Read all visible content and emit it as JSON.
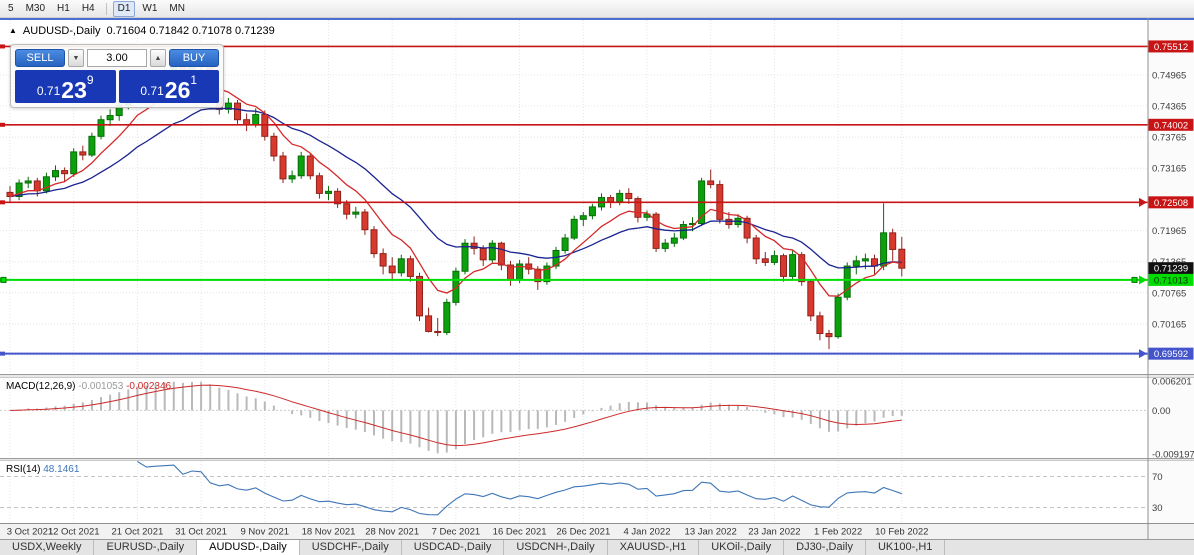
{
  "toolbar": {
    "timeframes": [
      "5",
      "M30",
      "H1",
      "H4",
      "D1",
      "W1",
      "MN"
    ],
    "active": "D1"
  },
  "header": {
    "arrow_icon": "▲",
    "title": "AUDUSD-,Daily",
    "ohlc": "0.71604 0.71842 0.71078 0.71239"
  },
  "trade_panel": {
    "sell_label": "SELL",
    "buy_label": "BUY",
    "volume": "3.00",
    "down_arrow_icon": "▼",
    "up_arrow_icon": "▲",
    "bid": {
      "prefix": "0.71",
      "big": "23",
      "sup": "9"
    },
    "ask": {
      "prefix": "0.71",
      "big": "26",
      "sup": "1"
    }
  },
  "tabs": {
    "items": [
      "USDX,Weekly",
      "EURUSD-,Daily",
      "AUDUSD-,Daily",
      "USDCHF-,Daily",
      "USDCAD-,Daily",
      "USDCNH-,Daily",
      "XAUUSD-,H1",
      "UKOil-,Daily",
      "DJ30-,Daily",
      "UK100-,H1"
    ],
    "active": "AUDUSD-,Daily"
  },
  "chart_data": {
    "type": "candlestick",
    "symbol": "AUDUSD-",
    "period": "Daily",
    "current_bar": {
      "open": "0.71604",
      "high": "0.71842",
      "low": "0.71078",
      "close": "0.71239"
    },
    "price_range": [
      0.692,
      0.7606
    ],
    "y_ticks": [
      "0.74965",
      "0.74365",
      "0.73765",
      "0.73165",
      "0.71965",
      "0.71365",
      "0.70765",
      "0.70165",
      "0.69565"
    ],
    "badges": [
      {
        "text": "0.75512",
        "bg": "#c81414",
        "fg": "#ffffff"
      },
      {
        "text": "0.74002",
        "bg": "#c81414",
        "fg": "#ffffff"
      },
      {
        "text": "0.72508",
        "bg": "#c81414",
        "fg": "#ffffff"
      },
      {
        "text": "0.71239",
        "bg": "#111111",
        "fg": "#ffffff"
      },
      {
        "text": "0.71013",
        "bg": "#00dd00",
        "fg": "#003300"
      },
      {
        "text": "0.69592",
        "bg": "#4455cc",
        "fg": "#ffffff"
      }
    ],
    "hlines": [
      {
        "price": 0.75512,
        "color": "#c81414",
        "w": 1.6
      },
      {
        "price": 0.74002,
        "color": "#c81414",
        "w": 1.6
      },
      {
        "price": 0.72508,
        "color": "#c81414",
        "w": 1.6,
        "arrow": true
      },
      {
        "price": 0.71013,
        "color": "#00dd00",
        "w": 2,
        "arrow": true,
        "handles": true
      },
      {
        "price": 0.69592,
        "color": "#4455cc",
        "w": 2,
        "arrow": true
      }
    ],
    "x_labels": [
      "3 Oct 2021",
      "12 Oct 2021",
      "21 Oct 2021",
      "31 Oct 2021",
      "9 Nov 2021",
      "18 Nov 2021",
      "28 Nov 2021",
      "7 Dec 2021",
      "16 Dec 2021",
      "26 Dec 2021",
      "4 Jan 2022",
      "13 Jan 2022",
      "23 Jan 2022",
      "1 Feb 2022",
      "10 Feb 2022"
    ],
    "label_every": 7,
    "ma_fast_period": 8,
    "ma_slow_period": 20,
    "ma_fast_color": "#d42a2a",
    "ma_slow_color": "#1c2490",
    "up_color": "#0da00d",
    "down_color": "#d8392e",
    "candles": [
      [
        0.727,
        0.7282,
        0.7252,
        0.7262
      ],
      [
        0.7262,
        0.7295,
        0.7255,
        0.7288
      ],
      [
        0.7288,
        0.73,
        0.7278,
        0.7292
      ],
      [
        0.7292,
        0.7298,
        0.7262,
        0.7273
      ],
      [
        0.7273,
        0.7308,
        0.7268,
        0.73
      ],
      [
        0.73,
        0.7322,
        0.7292,
        0.7312
      ],
      [
        0.7312,
        0.7318,
        0.729,
        0.7306
      ],
      [
        0.7306,
        0.7355,
        0.73,
        0.7348
      ],
      [
        0.7348,
        0.736,
        0.7332,
        0.7342
      ],
      [
        0.7342,
        0.7385,
        0.7338,
        0.7378
      ],
      [
        0.7378,
        0.7418,
        0.7372,
        0.741
      ],
      [
        0.741,
        0.743,
        0.7398,
        0.7418
      ],
      [
        0.7418,
        0.7445,
        0.7408,
        0.7438
      ],
      [
        0.7438,
        0.7472,
        0.743,
        0.7465
      ],
      [
        0.7465,
        0.7502,
        0.7458,
        0.7492
      ],
      [
        0.7492,
        0.7498,
        0.7452,
        0.7468
      ],
      [
        0.7468,
        0.7495,
        0.746,
        0.7488
      ],
      [
        0.7488,
        0.751,
        0.7478,
        0.7499
      ],
      [
        0.7499,
        0.7525,
        0.749,
        0.7512
      ],
      [
        0.7512,
        0.752,
        0.7462,
        0.747
      ],
      [
        0.747,
        0.7548,
        0.7465,
        0.7522
      ],
      [
        0.7522,
        0.7536,
        0.7505,
        0.7518
      ],
      [
        0.7518,
        0.7522,
        0.7442,
        0.7452
      ],
      [
        0.7452,
        0.7465,
        0.742,
        0.743
      ],
      [
        0.743,
        0.7452,
        0.7422,
        0.7442
      ],
      [
        0.7442,
        0.7448,
        0.7402,
        0.741
      ],
      [
        0.741,
        0.7422,
        0.7388,
        0.74
      ],
      [
        0.74,
        0.7432,
        0.7395,
        0.742
      ],
      [
        0.742,
        0.7428,
        0.737,
        0.7378
      ],
      [
        0.7378,
        0.7385,
        0.733,
        0.734
      ],
      [
        0.734,
        0.7348,
        0.7288,
        0.7296
      ],
      [
        0.7296,
        0.7312,
        0.7288,
        0.7302
      ],
      [
        0.7302,
        0.7348,
        0.7296,
        0.734
      ],
      [
        0.734,
        0.7345,
        0.7295,
        0.7302
      ],
      [
        0.7302,
        0.7308,
        0.7258,
        0.7268
      ],
      [
        0.7268,
        0.7282,
        0.7255,
        0.7272
      ],
      [
        0.7272,
        0.7278,
        0.724,
        0.7248
      ],
      [
        0.7248,
        0.7255,
        0.7218,
        0.7228
      ],
      [
        0.7228,
        0.7242,
        0.722,
        0.7232
      ],
      [
        0.7232,
        0.7238,
        0.7188,
        0.7198
      ],
      [
        0.7198,
        0.7205,
        0.7144,
        0.7152
      ],
      [
        0.7152,
        0.7162,
        0.7112,
        0.7128
      ],
      [
        0.7128,
        0.7145,
        0.71,
        0.7115
      ],
      [
        0.7115,
        0.715,
        0.7108,
        0.7142
      ],
      [
        0.7142,
        0.7148,
        0.7098,
        0.7108
      ],
      [
        0.7108,
        0.7115,
        0.7022,
        0.7032
      ],
      [
        0.7032,
        0.7048,
        0.7,
        0.7002
      ],
      [
        0.7002,
        0.7028,
        0.6993,
        0.7
      ],
      [
        0.7,
        0.7065,
        0.6995,
        0.7058
      ],
      [
        0.7058,
        0.7125,
        0.7052,
        0.7118
      ],
      [
        0.7118,
        0.718,
        0.7112,
        0.7172
      ],
      [
        0.7172,
        0.7185,
        0.715,
        0.7162
      ],
      [
        0.7162,
        0.7168,
        0.7128,
        0.714
      ],
      [
        0.714,
        0.7178,
        0.7135,
        0.7172
      ],
      [
        0.7172,
        0.7175,
        0.712,
        0.713
      ],
      [
        0.713,
        0.7138,
        0.709,
        0.7102
      ],
      [
        0.7102,
        0.714,
        0.7095,
        0.7132
      ],
      [
        0.7132,
        0.7145,
        0.7112,
        0.7122
      ],
      [
        0.7122,
        0.7128,
        0.7082,
        0.7098
      ],
      [
        0.7098,
        0.7135,
        0.7092,
        0.7128
      ],
      [
        0.7128,
        0.7165,
        0.7122,
        0.7158
      ],
      [
        0.7158,
        0.719,
        0.7152,
        0.7182
      ],
      [
        0.7182,
        0.7225,
        0.7178,
        0.7218
      ],
      [
        0.7218,
        0.7232,
        0.7205,
        0.7225
      ],
      [
        0.7225,
        0.7248,
        0.7218,
        0.7242
      ],
      [
        0.7242,
        0.7268,
        0.7235,
        0.726
      ],
      [
        0.726,
        0.7265,
        0.724,
        0.7252
      ],
      [
        0.7252,
        0.7275,
        0.7245,
        0.7268
      ],
      [
        0.7268,
        0.7278,
        0.7248,
        0.7258
      ],
      [
        0.7258,
        0.7262,
        0.7212,
        0.7222
      ],
      [
        0.7222,
        0.7235,
        0.7215,
        0.7228
      ],
      [
        0.7228,
        0.7232,
        0.7155,
        0.7162
      ],
      [
        0.7162,
        0.718,
        0.7155,
        0.7172
      ],
      [
        0.7172,
        0.7192,
        0.7165,
        0.7182
      ],
      [
        0.7182,
        0.7215,
        0.7178,
        0.7208
      ],
      [
        0.7208,
        0.7222,
        0.7195,
        0.721
      ],
      [
        0.721,
        0.7298,
        0.7205,
        0.7292
      ],
      [
        0.7292,
        0.7314,
        0.7278,
        0.7285
      ],
      [
        0.7285,
        0.7293,
        0.721,
        0.7218
      ],
      [
        0.7218,
        0.7232,
        0.72,
        0.7208
      ],
      [
        0.7208,
        0.7228,
        0.7202,
        0.722
      ],
      [
        0.722,
        0.7225,
        0.7172,
        0.7182
      ],
      [
        0.7182,
        0.7188,
        0.7132,
        0.7142
      ],
      [
        0.7142,
        0.7155,
        0.7128,
        0.7135
      ],
      [
        0.7135,
        0.7158,
        0.713,
        0.7148
      ],
      [
        0.7148,
        0.7152,
        0.7098,
        0.7108
      ],
      [
        0.7108,
        0.7158,
        0.7102,
        0.715
      ],
      [
        0.715,
        0.7155,
        0.709,
        0.7098
      ],
      [
        0.7098,
        0.7102,
        0.7022,
        0.7032
      ],
      [
        0.7032,
        0.704,
        0.6985,
        0.6998
      ],
      [
        0.6998,
        0.7005,
        0.6968,
        0.6992
      ],
      [
        0.6992,
        0.7075,
        0.6988,
        0.7068
      ],
      [
        0.7068,
        0.7135,
        0.7062,
        0.7128
      ],
      [
        0.7128,
        0.7148,
        0.7112,
        0.7138
      ],
      [
        0.7138,
        0.7152,
        0.7122,
        0.7142
      ],
      [
        0.7142,
        0.715,
        0.7112,
        0.7128
      ],
      [
        0.7128,
        0.7249,
        0.712,
        0.7192
      ],
      [
        0.7192,
        0.72,
        0.7138,
        0.716
      ],
      [
        0.71604,
        0.71842,
        0.71078,
        0.71239
      ]
    ],
    "indicators": {
      "macd": {
        "label": "MACD(12,26,9)",
        "values": "-0.001053 -0.002346",
        "axis_labels": [
          "0.006201",
          "0.00",
          "-0.009197"
        ],
        "range": [
          -0.01,
          0.0068
        ],
        "fast": 12,
        "slow": 26,
        "signal": 9,
        "histogram_color": "#b9b9b9",
        "signal_color": "#cc2a2a"
      },
      "rsi": {
        "label": "RSI(14)",
        "value": "48.1461",
        "period": 14,
        "levels": [
          70,
          30
        ],
        "range": [
          10,
          90
        ],
        "line_color": "#3f76b8"
      }
    }
  }
}
